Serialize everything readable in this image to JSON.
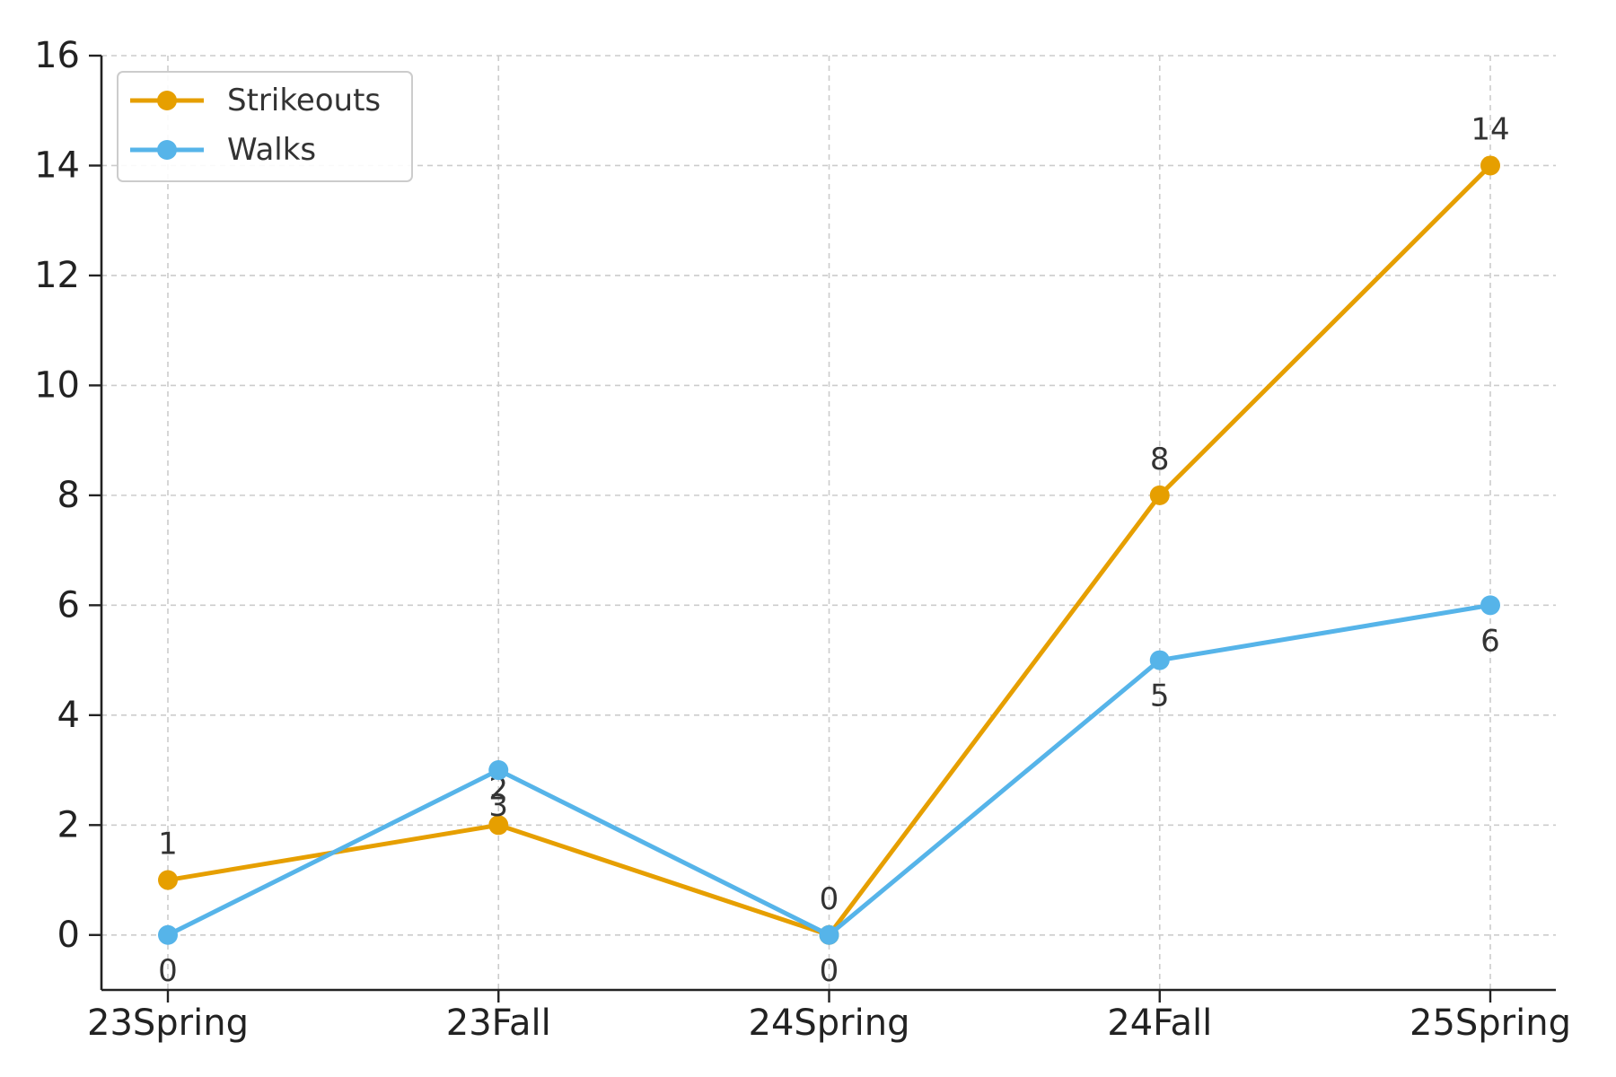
{
  "chart_data": {
    "type": "line",
    "categories": [
      "23Spring",
      "23Fall",
      "24Spring",
      "24Fall",
      "25Spring"
    ],
    "series": [
      {
        "name": "Strikeouts",
        "values": [
          1,
          2,
          0,
          8,
          14
        ],
        "color": "#E69F00",
        "label_position": "above"
      },
      {
        "name": "Walks",
        "values": [
          0,
          3,
          0,
          5,
          6
        ],
        "color": "#56B4E9",
        "label_position": "below"
      }
    ],
    "title": "",
    "xlabel": "",
    "ylabel": "",
    "ylim": [
      -1,
      16
    ],
    "yticks": [
      0,
      2,
      4,
      6,
      8,
      10,
      12,
      14,
      16
    ],
    "grid": true,
    "legend_position": "top-left"
  }
}
